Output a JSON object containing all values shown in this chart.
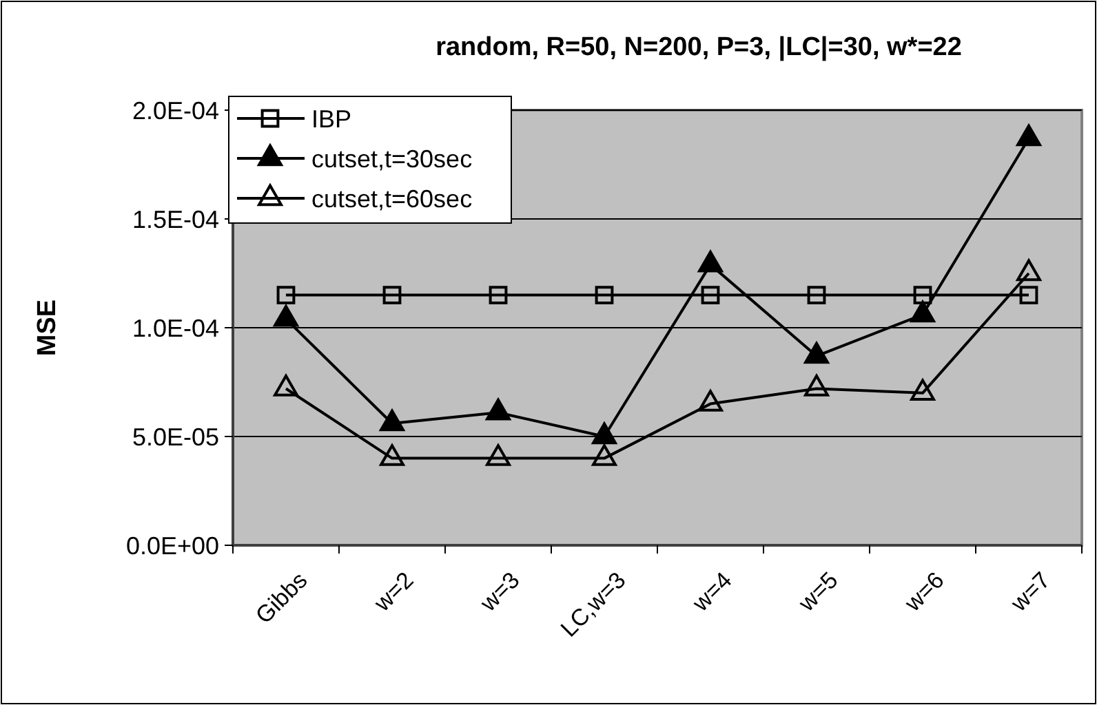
{
  "chart_data": {
    "type": "line",
    "title": "random, R=50, N=200, P=3, |LC|=30, w*=22",
    "ylabel": "MSE",
    "categories": [
      "Gibbs",
      "w=2",
      "w=3",
      "LC,w=3",
      "w=4",
      "w=5",
      "w=6",
      "w=7"
    ],
    "series": [
      {
        "name": "IBP",
        "color": "#000000",
        "marker": "square",
        "values": [
          0.000115,
          0.000115,
          0.000115,
          0.000115,
          0.000115,
          0.000115,
          0.000115,
          0.000115
        ]
      },
      {
        "name": "cutset,t=30sec",
        "color": "#000000",
        "marker": "triangle",
        "values": [
          0.000104,
          5.6e-05,
          6.1e-05,
          5e-05,
          0.000129,
          8.7e-05,
          0.000106,
          0.000187
        ]
      },
      {
        "name": "cutset,t=60sec",
        "color": "#000000",
        "marker": "triangle",
        "values": [
          7.2e-05,
          4e-05,
          4e-05,
          4e-05,
          6.5e-05,
          7.2e-05,
          7e-05,
          0.000125
        ]
      }
    ],
    "ylim": [
      0,
      0.0002
    ],
    "yticks": [
      {
        "value": 0,
        "label": "0.0E+00"
      },
      {
        "value": 5e-05,
        "label": "5.0E-05"
      },
      {
        "value": 0.0001,
        "label": "1.0E-04"
      },
      {
        "value": 0.00015,
        "label": "1.5E-04"
      },
      {
        "value": 0.0002,
        "label": "2.0E-04"
      }
    ],
    "grid": "y",
    "legend": "top left"
  }
}
